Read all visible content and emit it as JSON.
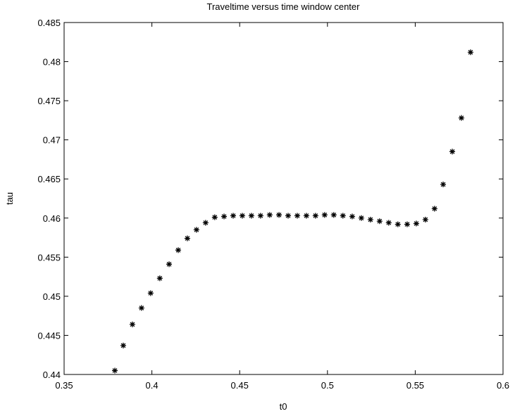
{
  "chart_data": {
    "type": "scatter",
    "title": "Traveltime versus time window center",
    "x_label": "t0",
    "y_label": "tau",
    "marker": "asterisk",
    "color": "#000000",
    "x": [
      0.3789,
      0.3837,
      0.3889,
      0.3941,
      0.3993,
      0.4045,
      0.4098,
      0.415,
      0.4202,
      0.4254,
      0.4306,
      0.4358,
      0.4411,
      0.4463,
      0.4515,
      0.4567,
      0.4619,
      0.4671,
      0.4724,
      0.4776,
      0.4828,
      0.488,
      0.4932,
      0.4984,
      0.5036,
      0.5088,
      0.5141,
      0.5193,
      0.5245,
      0.5297,
      0.5349,
      0.5401,
      0.5454,
      0.5506,
      0.5558,
      0.561,
      0.5659,
      0.5711,
      0.5763,
      0.5815
    ],
    "values": [
      0.4405,
      0.4437,
      0.4464,
      0.4485,
      0.4504,
      0.4523,
      0.4541,
      0.4559,
      0.4574,
      0.4585,
      0.4594,
      0.4601,
      0.4602,
      0.4603,
      0.4603,
      0.4603,
      0.4603,
      0.4604,
      0.4604,
      0.4603,
      0.4603,
      0.4603,
      0.4603,
      0.4604,
      0.4604,
      0.4603,
      0.4602,
      0.46,
      0.4598,
      0.4596,
      0.4594,
      0.4592,
      0.4592,
      0.4593,
      0.4598,
      0.4612,
      0.4643,
      0.4685,
      0.4728,
      0.4812
    ],
    "xlim": [
      0.35,
      0.6
    ],
    "xticks": [
      0.35,
      0.4,
      0.45,
      0.5,
      0.55,
      0.6
    ],
    "ylim": [
      0.44,
      0.485
    ],
    "yticks": [
      0.44,
      0.445,
      0.45,
      0.455,
      0.46,
      0.465,
      0.47,
      0.475,
      0.48,
      0.485
    ],
    "grid": false
  }
}
